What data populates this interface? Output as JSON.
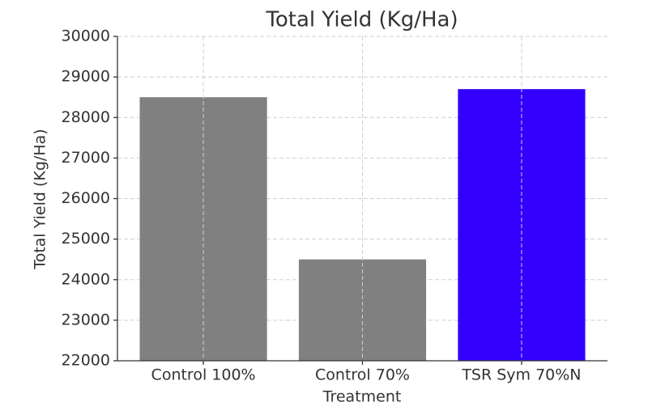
{
  "chart_data": {
    "type": "bar",
    "title": "Total Yield (Kg/Ha)",
    "x_label": "Treatment",
    "y_label": "Total Yield (Kg/Ha)",
    "categories": [
      "Control 100%",
      "Control 70%",
      "TSR Sym 70%N"
    ],
    "values": [
      28500,
      24500,
      28700
    ],
    "colors": [
      "#808080",
      "#808080",
      "#3300ff"
    ],
    "ylim": [
      22000,
      30000
    ],
    "yticks": [
      22000,
      23000,
      24000,
      25000,
      26000,
      27000,
      28000,
      29000,
      30000
    ],
    "grid": true
  }
}
